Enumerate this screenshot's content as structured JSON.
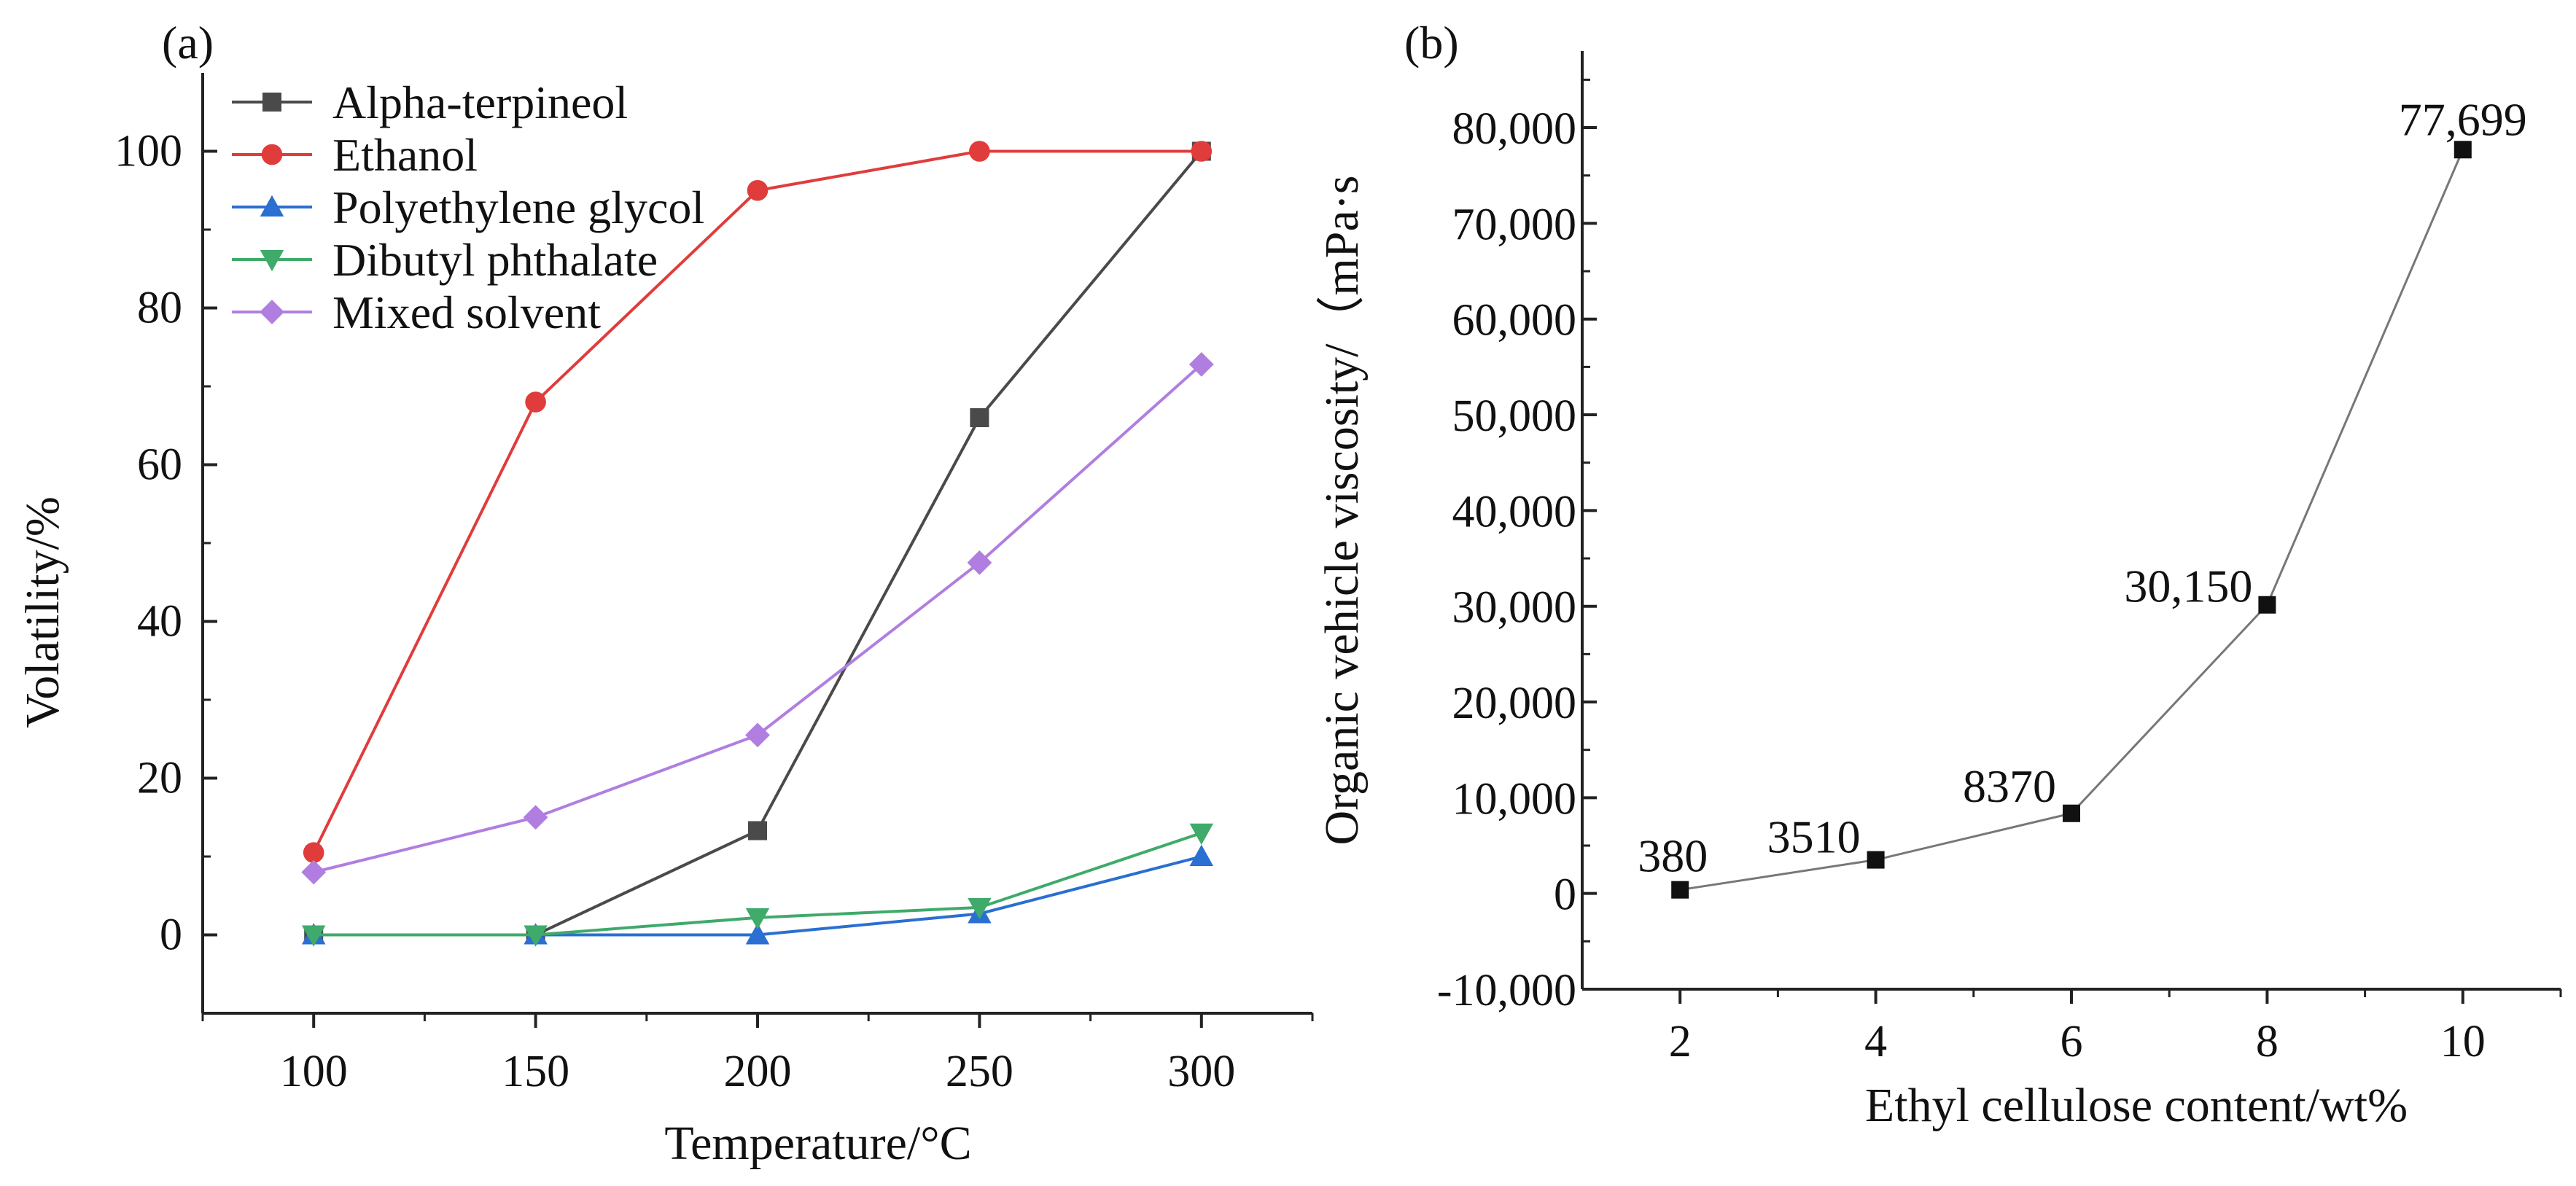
{
  "chart_data": [
    {
      "type": "line",
      "panel_label": "(a)",
      "xlabel": "Temperature/°C",
      "ylabel": "Volatility/%",
      "xlim": [
        75,
        325
      ],
      "ylim": [
        -10,
        110
      ],
      "xticks": [
        100,
        150,
        200,
        250,
        300
      ],
      "xtick_labels": [
        "100",
        "150",
        "200",
        "250",
        "300"
      ],
      "yticks": [
        0,
        20,
        40,
        60,
        80,
        100
      ],
      "ytick_labels": [
        "0",
        "20",
        "40",
        "60",
        "80",
        "100"
      ],
      "legend_position": "top-left",
      "x": [
        100,
        150,
        200,
        250,
        300
      ],
      "series": [
        {
          "name": "Alpha-terpineol",
          "marker": "square",
          "color": "#4a4a4a",
          "values": [
            0,
            0,
            13.3,
            66,
            100
          ]
        },
        {
          "name": "Ethanol",
          "marker": "circle",
          "color": "#e03c3c",
          "values": [
            10.5,
            68,
            95,
            100,
            100
          ]
        },
        {
          "name": "Polyethylene glycol",
          "marker": "triangle-up",
          "color": "#2a6fd1",
          "values": [
            0,
            0,
            0,
            2.7,
            10
          ]
        },
        {
          "name": "Dibutyl phthalate",
          "marker": "triangle-down",
          "color": "#3faa6a",
          "values": [
            0,
            0,
            2.2,
            3.5,
            13
          ]
        },
        {
          "name": "Mixed solvent",
          "marker": "diamond",
          "color": "#b07ee0",
          "values": [
            8,
            15,
            25.5,
            47.5,
            72.8
          ]
        }
      ]
    },
    {
      "type": "line",
      "panel_label": "(b)",
      "xlabel": "Ethyl cellulose content/wt%",
      "ylabel": "Organic vehicle viscosity/（mPa·s",
      "xlim": [
        1,
        11
      ],
      "ylim": [
        -10000,
        88000
      ],
      "xticks": [
        2,
        4,
        6,
        8,
        10
      ],
      "xtick_labels": [
        "2",
        "4",
        "6",
        "8",
        "10"
      ],
      "yticks": [
        -10000,
        0,
        10000,
        20000,
        30000,
        40000,
        50000,
        60000,
        70000,
        80000
      ],
      "ytick_labels": [
        "-10,000",
        "0",
        "10,000",
        "20,000",
        "30,000",
        "40,000",
        "50,000",
        "60,000",
        "70,000",
        "80,000"
      ],
      "series": [
        {
          "name": "viscosity",
          "marker": "square",
          "color": "#111111",
          "x": [
            2,
            4,
            6,
            8,
            10
          ],
          "values": [
            380,
            3510,
            8370,
            30150,
            77699
          ],
          "data_labels": [
            "380",
            "3510",
            "8370",
            "30,150",
            "77,699"
          ]
        }
      ]
    }
  ]
}
